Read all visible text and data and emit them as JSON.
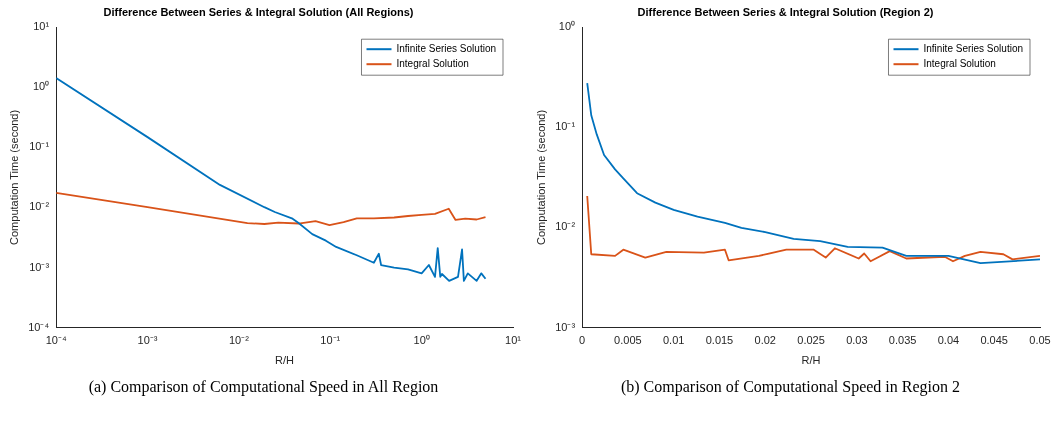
{
  "chart_data": [
    {
      "type": "line",
      "title": "Difference Between Series & Integral Solution (All Regions)",
      "xlabel": "R/H",
      "ylabel": "Computation Time (second)",
      "annotations": [
        "(a) Comparison of Computational Speed in All Region"
      ],
      "log": "xy",
      "legend": "top right",
      "grid": false,
      "marker": "none",
      "line_style": "solid",
      "xlim": [
        0.0001,
        10
      ],
      "xticks": [
        {
          "value": 0.0001,
          "label": "10⁻⁴"
        },
        {
          "value": 0.001,
          "label": "10⁻³"
        },
        {
          "value": 0.01,
          "label": "10⁻²"
        },
        {
          "value": 0.1,
          "label": "10⁻¹"
        },
        {
          "value": 1,
          "label": "10⁰"
        },
        {
          "value": 10,
          "label": "10¹"
        }
      ],
      "ylim": [
        0.0001,
        10
      ],
      "yticks": [
        {
          "value": 0.0001,
          "label": "10⁻⁴"
        },
        {
          "value": 0.001,
          "label": "10⁻³"
        },
        {
          "value": 0.01,
          "label": "10⁻²"
        },
        {
          "value": 0.1,
          "label": "10⁻¹"
        },
        {
          "value": 1,
          "label": "10⁰"
        },
        {
          "value": 10,
          "label": "10¹"
        }
      ],
      "series": [
        {
          "name": "Infinite Series Solution",
          "color": "#0072bd",
          "x": [
            0.0001,
            0.001,
            0.0062,
            0.019,
            0.0247,
            0.038,
            0.045,
            0.0635,
            0.0895,
            0.116,
            0.195,
            0.3,
            0.34,
            0.36,
            0.5,
            0.71,
            1.0,
            1.2,
            1.4,
            1.5,
            1.6,
            1.67,
            2.0,
            2.5,
            2.77,
            2.9,
            3.2,
            4.0,
            4.5,
            5.0
          ],
          "values": [
            1.42,
            0.148,
            0.0237,
            0.0101,
            0.0084,
            0.0066,
            0.0055,
            0.0036,
            0.0028,
            0.0022,
            0.0016,
            0.0012,
            0.0017,
            0.0011,
            0.001,
            0.00093,
            0.0008,
            0.0011,
            0.0007,
            0.0021,
            0.0007,
            0.00078,
            0.0006,
            0.0007,
            0.002,
            0.0006,
            0.0008,
            0.0006,
            0.0008,
            0.00065
          ]
        },
        {
          "name": "Integral Solution",
          "color": "#d95319",
          "x": [
            0.0001,
            0.001,
            0.0124,
            0.019,
            0.027,
            0.045,
            0.069,
            0.098,
            0.14,
            0.195,
            0.3,
            0.5,
            0.71,
            1.0,
            1.4,
            1.98,
            2.35,
            3.0,
            4.0,
            5.0
          ],
          "values": [
            0.0175,
            0.0101,
            0.0055,
            0.0053,
            0.0056,
            0.0054,
            0.0059,
            0.0051,
            0.0057,
            0.0066,
            0.0066,
            0.0068,
            0.0072,
            0.0075,
            0.0078,
            0.0095,
            0.0062,
            0.0065,
            0.0063,
            0.0069
          ]
        }
      ]
    },
    {
      "type": "line",
      "title": "Difference Between Series & Integral Solution (Region 2)",
      "xlabel": "R/H",
      "ylabel": "Computation Time (second)",
      "annotations": [
        "(b) Comparison of Computational Speed in Region 2"
      ],
      "log": "y",
      "legend": "top right",
      "grid": false,
      "marker": "none",
      "line_style": "solid",
      "xlim": [
        0,
        0.05
      ],
      "xticks": [
        0,
        0.005,
        0.01,
        0.015,
        0.02,
        0.025,
        0.03,
        0.035,
        0.04,
        0.045,
        0.05
      ],
      "ylim": [
        0.001,
        1
      ],
      "yticks": [
        {
          "value": 0.001,
          "label": "10⁻³"
        },
        {
          "value": 0.01,
          "label": "10⁻²"
        },
        {
          "value": 0.1,
          "label": "10⁻¹"
        },
        {
          "value": 1,
          "label": "10⁰"
        }
      ],
      "series": [
        {
          "name": "Infinite Series Solution",
          "color": "#0072bd",
          "x": [
            0.00056,
            0.001,
            0.0016,
            0.0024,
            0.0036,
            0.0045,
            0.006,
            0.008,
            0.01,
            0.0126,
            0.0156,
            0.0174,
            0.02,
            0.0231,
            0.026,
            0.029,
            0.0328,
            0.0354,
            0.04,
            0.0435,
            0.05
          ],
          "values": [
            0.277,
            0.132,
            0.085,
            0.053,
            0.038,
            0.031,
            0.022,
            0.0177,
            0.015,
            0.0128,
            0.0111,
            0.0099,
            0.009,
            0.0077,
            0.0073,
            0.0064,
            0.0063,
            0.0052,
            0.0052,
            0.0044,
            0.0048
          ]
        },
        {
          "name": "Integral Solution",
          "color": "#d95319",
          "x": [
            0.00056,
            0.001,
            0.0036,
            0.0045,
            0.0069,
            0.0092,
            0.0133,
            0.0156,
            0.016,
            0.0193,
            0.0223,
            0.0253,
            0.0266,
            0.0276,
            0.0302,
            0.0308,
            0.0315,
            0.0336,
            0.0354,
            0.0396,
            0.0405,
            0.0418,
            0.0435,
            0.046,
            0.047,
            0.05
          ],
          "values": [
            0.0206,
            0.0054,
            0.0052,
            0.006,
            0.005,
            0.0057,
            0.0056,
            0.006,
            0.0047,
            0.0052,
            0.006,
            0.006,
            0.005,
            0.0062,
            0.0049,
            0.0055,
            0.0046,
            0.0058,
            0.0049,
            0.0051,
            0.0046,
            0.0052,
            0.0057,
            0.0054,
            0.0048,
            0.0052
          ]
        }
      ]
    }
  ]
}
